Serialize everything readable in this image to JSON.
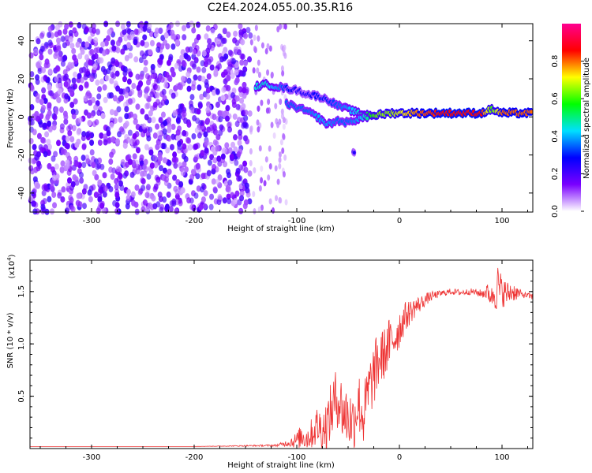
{
  "title": "C2E4.2024.055.00.35.R16",
  "chart_data": [
    {
      "type": "heatmap",
      "title": "C2E4.2024.055.00.35.R16",
      "xlabel": "Height of straight line (km)",
      "ylabel": "Frequency (Hz)",
      "xlim": [
        -360,
        130
      ],
      "ylim": [
        -50,
        49
      ],
      "xticks": [
        -300,
        -200,
        -100,
        0,
        100
      ],
      "yticks": [
        -40,
        -20,
        0,
        20,
        40
      ],
      "colorbar": {
        "label": "Normalized spectral amplitude",
        "range": [
          0,
          1
        ],
        "ticks": [
          0.0,
          0.2,
          0.4,
          0.6,
          0.8
        ],
        "colors": [
          "#ffffff",
          "#7a00ff",
          "#0000ff",
          "#00e0ff",
          "#00ff00",
          "#ffff00",
          "#ff0000",
          "#ff0090"
        ]
      },
      "noise_region": {
        "x": [
          -360,
          -145
        ],
        "y": [
          -50,
          49
        ],
        "level": 0.15
      },
      "sparse_region": {
        "x": [
          -145,
          -110
        ],
        "y": [
          -50,
          49
        ],
        "level": 0.08
      },
      "signal_track": [
        {
          "x": -140,
          "y": 16,
          "a": 0.45
        },
        {
          "x": -130,
          "y": 17,
          "a": 0.45
        },
        {
          "x": -120,
          "y": 16,
          "a": 0.4
        },
        {
          "x": -110,
          "y": 15,
          "a": 0.3
        },
        {
          "x": -100,
          "y": 14,
          "a": 0.25
        },
        {
          "x": -90,
          "y": 12,
          "a": 0.25
        },
        {
          "x": -80,
          "y": 11,
          "a": 0.3
        },
        {
          "x": -70,
          "y": 9,
          "a": 0.3
        },
        {
          "x": -60,
          "y": 6,
          "a": 0.35
        },
        {
          "x": -50,
          "y": 4,
          "a": 0.4
        },
        {
          "x": -40,
          "y": 2,
          "a": 0.45
        },
        {
          "x": -30,
          "y": 1,
          "a": 0.55
        },
        {
          "x": -20,
          "y": 1,
          "a": 0.65
        },
        {
          "x": -10,
          "y": 2,
          "a": 0.65
        },
        {
          "x": 0,
          "y": 2,
          "a": 0.7
        },
        {
          "x": 20,
          "y": 2,
          "a": 0.8
        },
        {
          "x": 40,
          "y": 2,
          "a": 0.85
        },
        {
          "x": 60,
          "y": 2,
          "a": 0.85
        },
        {
          "x": 80,
          "y": 2,
          "a": 0.85
        },
        {
          "x": 90,
          "y": 4,
          "a": 0.6
        },
        {
          "x": 100,
          "y": 2,
          "a": 0.8
        },
        {
          "x": 130,
          "y": 2,
          "a": 0.8
        }
      ],
      "lower_branch": [
        {
          "x": -110,
          "y": 7,
          "a": 0.35
        },
        {
          "x": -100,
          "y": 5,
          "a": 0.35
        },
        {
          "x": -90,
          "y": 3,
          "a": 0.35
        },
        {
          "x": -80,
          "y": 0,
          "a": 0.4
        },
        {
          "x": -70,
          "y": -4,
          "a": 0.4
        },
        {
          "x": -60,
          "y": -2,
          "a": 0.35
        },
        {
          "x": -50,
          "y": -3,
          "a": 0.35
        },
        {
          "x": -40,
          "y": -1,
          "a": 0.4
        },
        {
          "x": -30,
          "y": 0,
          "a": 0.5
        }
      ],
      "spur": [
        {
          "x": -45,
          "y": -18,
          "a": 0.25
        },
        {
          "x": -43,
          "y": -20,
          "a": 0.25
        }
      ]
    },
    {
      "type": "line",
      "xlabel": "Height of straight line (km)",
      "ylabel": "SNR (10 * v/v)",
      "yscale_label": "(x10",
      "yscale_exp": "4",
      "yscale_close": ")",
      "xlim": [
        -360,
        130
      ],
      "ylim": [
        0,
        1.8
      ],
      "xticks": [
        -300,
        -200,
        -100,
        0,
        100
      ],
      "yticks": [
        0.5,
        1.0,
        1.5
      ],
      "ytick_labels": [
        "0.5",
        "1.0",
        "1.5"
      ],
      "color": "#ee3333",
      "x": [
        -360,
        -300,
        -200,
        -120,
        -110,
        -100,
        -95,
        -90,
        -85,
        -80,
        -75,
        -70,
        -65,
        -60,
        -55,
        -50,
        -45,
        -40,
        -35,
        -30,
        -25,
        -20,
        -15,
        -10,
        -5,
        0,
        5,
        10,
        15,
        20,
        25,
        30,
        40,
        50,
        60,
        70,
        80,
        85,
        90,
        95,
        100,
        105,
        110,
        120,
        130
      ],
      "y": [
        0.02,
        0.02,
        0.02,
        0.03,
        0.05,
        0.08,
        0.12,
        0.1,
        0.15,
        0.22,
        0.18,
        0.25,
        0.4,
        0.5,
        0.35,
        0.3,
        0.25,
        0.45,
        0.3,
        0.55,
        0.7,
        0.85,
        0.9,
        1.0,
        1.05,
        1.15,
        1.25,
        1.3,
        1.35,
        1.38,
        1.42,
        1.45,
        1.48,
        1.5,
        1.49,
        1.5,
        1.48,
        1.5,
        1.45,
        1.55,
        1.5,
        1.48,
        1.5,
        1.47,
        1.45
      ],
      "noise": [
        0,
        0,
        0,
        0.01,
        0.03,
        0.08,
        0.12,
        0.12,
        0.15,
        0.2,
        0.2,
        0.25,
        0.3,
        0.3,
        0.3,
        0.3,
        0.3,
        0.3,
        0.3,
        0.3,
        0.3,
        0.3,
        0.25,
        0.25,
        0.2,
        0.2,
        0.15,
        0.12,
        0.1,
        0.08,
        0.06,
        0.05,
        0.03,
        0.03,
        0.03,
        0.03,
        0.04,
        0.08,
        0.1,
        0.25,
        0.15,
        0.12,
        0.1,
        0.03,
        0.03
      ]
    }
  ]
}
